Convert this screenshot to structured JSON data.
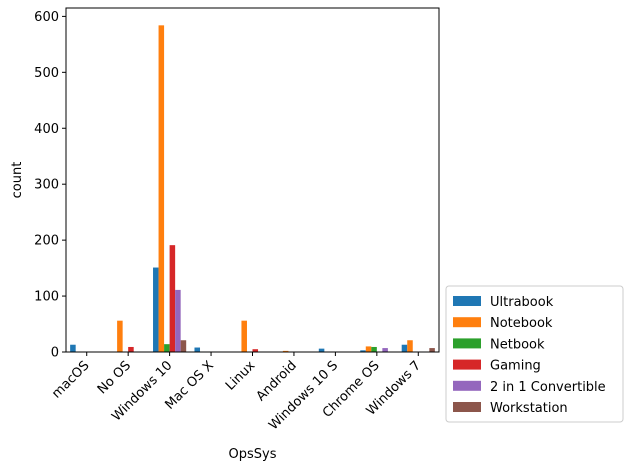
{
  "chart_data": {
    "type": "bar",
    "title": "",
    "xlabel": "OpsSys",
    "ylabel": "count",
    "ylim": [
      0,
      615
    ],
    "yticks": [
      0,
      100,
      200,
      300,
      400,
      500,
      600
    ],
    "categories": [
      "macOS",
      "No OS",
      "Windows 10",
      "Mac OS X",
      "Linux",
      "Android",
      "Windows 10 S",
      "Chrome OS",
      "Windows 7"
    ],
    "series": [
      {
        "name": "Ultrabook",
        "color": "#1f77b4",
        "values": [
          13,
          0,
          151,
          8,
          0,
          0,
          6,
          3,
          13
        ]
      },
      {
        "name": "Notebook",
        "color": "#ff7f0e",
        "values": [
          0,
          56,
          584,
          0,
          56,
          2,
          0,
          10,
          21
        ]
      },
      {
        "name": "Netbook",
        "color": "#2ca02c",
        "values": [
          0,
          0,
          14,
          0,
          0,
          0,
          0,
          9,
          0
        ]
      },
      {
        "name": "Gaming",
        "color": "#d62728",
        "values": [
          0,
          9,
          191,
          0,
          5,
          0,
          0,
          0,
          0
        ]
      },
      {
        "name": "2 in 1 Convertible",
        "color": "#9467bd",
        "values": [
          0,
          0,
          111,
          0,
          0,
          0,
          0,
          7,
          0
        ]
      },
      {
        "name": "Workstation",
        "color": "#8c564b",
        "values": [
          0,
          0,
          21,
          0,
          0,
          0,
          0,
          0,
          7
        ]
      }
    ],
    "legend_position": "outside-right-bottom",
    "grid": false
  }
}
